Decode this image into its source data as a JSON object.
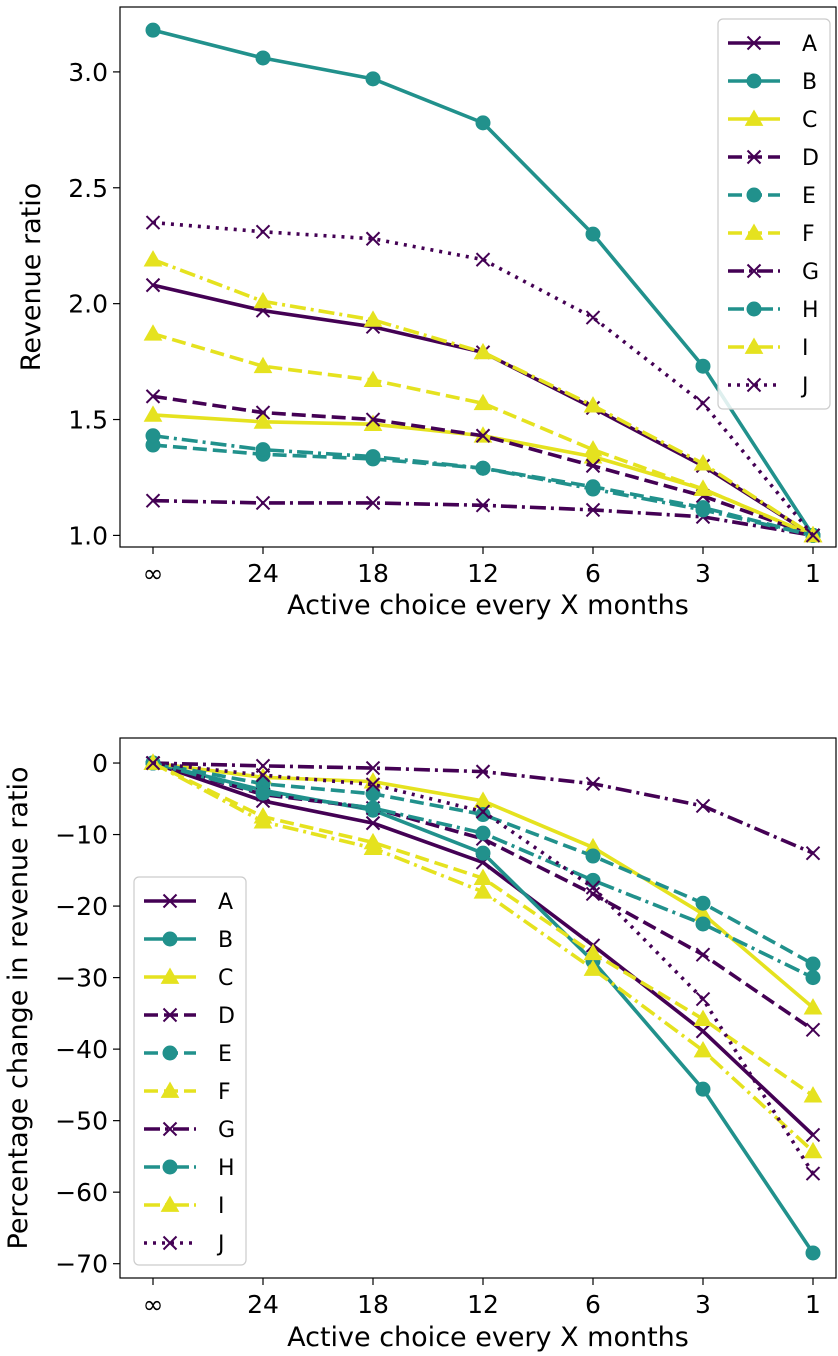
{
  "colors": {
    "purple": "#440154",
    "teal": "#21918c",
    "yellow": "#e5e21f"
  },
  "chart_data": [
    {
      "type": "line",
      "xlabel": "Active choice every X months",
      "ylabel": "Revenue ratio",
      "x_categories": [
        "∞",
        "24",
        "18",
        "12",
        "6",
        "3",
        "1"
      ],
      "ylim": [
        0.95,
        3.28
      ],
      "yticks": [
        1.0,
        1.5,
        2.0,
        2.5,
        3.0
      ],
      "ytick_labels": [
        "1.0",
        "1.5",
        "2.0",
        "2.5",
        "3.0"
      ],
      "legend_position": "upper right",
      "grid": false,
      "series": [
        {
          "name": "A",
          "color": "purple",
          "marker": "x",
          "dash": "solid",
          "values": [
            2.08,
            1.97,
            1.9,
            1.79,
            1.55,
            1.3,
            1.0
          ]
        },
        {
          "name": "B",
          "color": "teal",
          "marker": "circle",
          "dash": "solid",
          "values": [
            3.18,
            3.06,
            2.97,
            2.78,
            2.3,
            1.73,
            1.0
          ]
        },
        {
          "name": "C",
          "color": "yellow",
          "marker": "triangle",
          "dash": "solid",
          "values": [
            1.52,
            1.49,
            1.48,
            1.43,
            1.34,
            1.2,
            1.0
          ]
        },
        {
          "name": "D",
          "color": "purple",
          "marker": "x",
          "dash": "dashed",
          "values": [
            1.6,
            1.53,
            1.5,
            1.43,
            1.3,
            1.17,
            1.0
          ]
        },
        {
          "name": "E",
          "color": "teal",
          "marker": "circle",
          "dash": "dashed",
          "values": [
            1.39,
            1.35,
            1.33,
            1.29,
            1.21,
            1.12,
            1.0
          ]
        },
        {
          "name": "F",
          "color": "yellow",
          "marker": "triangle",
          "dash": "dashed",
          "values": [
            1.87,
            1.73,
            1.67,
            1.57,
            1.37,
            1.2,
            1.0
          ]
        },
        {
          "name": "G",
          "color": "purple",
          "marker": "x",
          "dash": "dashdot",
          "values": [
            1.15,
            1.14,
            1.14,
            1.13,
            1.11,
            1.08,
            1.0
          ]
        },
        {
          "name": "H",
          "color": "teal",
          "marker": "circle",
          "dash": "dashdot",
          "values": [
            1.43,
            1.37,
            1.34,
            1.29,
            1.2,
            1.11,
            1.0
          ]
        },
        {
          "name": "I",
          "color": "yellow",
          "marker": "triangle",
          "dash": "dashdot",
          "values": [
            2.19,
            2.01,
            1.93,
            1.79,
            1.56,
            1.31,
            1.0
          ]
        },
        {
          "name": "J",
          "color": "purple",
          "marker": "x",
          "dash": "dotted",
          "values": [
            2.35,
            2.31,
            2.28,
            2.19,
            1.94,
            1.57,
            1.0
          ]
        }
      ]
    },
    {
      "type": "line",
      "xlabel": "Active choice every X months",
      "ylabel": "Percentage change in revenue ratio",
      "x_categories": [
        "∞",
        "24",
        "18",
        "12",
        "6",
        "3",
        "1"
      ],
      "ylim": [
        -72,
        3.5
      ],
      "yticks": [
        0,
        -10,
        -20,
        -30,
        -40,
        -50,
        -60,
        -70
      ],
      "ytick_labels": [
        "0",
        "−10",
        "−20",
        "−30",
        "−40",
        "−50",
        "−60",
        "−70"
      ],
      "legend_position": "lower left",
      "grid": false,
      "series": [
        {
          "name": "A",
          "color": "purple",
          "marker": "x",
          "dash": "solid",
          "values": [
            0,
            -5.3,
            -8.4,
            -13.9,
            -25.5,
            -37.5,
            -52.0
          ]
        },
        {
          "name": "B",
          "color": "teal",
          "marker": "circle",
          "dash": "solid",
          "values": [
            0,
            -3.8,
            -6.6,
            -12.6,
            -27.7,
            -45.6,
            -68.5
          ]
        },
        {
          "name": "C",
          "color": "yellow",
          "marker": "triangle",
          "dash": "solid",
          "values": [
            0,
            -2.0,
            -2.6,
            -5.3,
            -11.8,
            -21.1,
            -34.2
          ]
        },
        {
          "name": "D",
          "color": "purple",
          "marker": "x",
          "dash": "dashed",
          "values": [
            0,
            -4.4,
            -6.3,
            -10.6,
            -18.3,
            -26.8,
            -37.3
          ]
        },
        {
          "name": "E",
          "color": "teal",
          "marker": "circle",
          "dash": "dashed",
          "values": [
            0,
            -2.9,
            -4.3,
            -7.2,
            -13.0,
            -19.6,
            -28.1
          ]
        },
        {
          "name": "F",
          "color": "yellow",
          "marker": "triangle",
          "dash": "dashed",
          "values": [
            0,
            -7.5,
            -11.1,
            -16.1,
            -26.6,
            -35.8,
            -46.5
          ]
        },
        {
          "name": "G",
          "color": "purple",
          "marker": "x",
          "dash": "dashdot",
          "values": [
            0,
            -0.4,
            -0.7,
            -1.2,
            -2.9,
            -6.0,
            -12.6
          ]
        },
        {
          "name": "H",
          "color": "teal",
          "marker": "circle",
          "dash": "dashdot",
          "values": [
            0,
            -4.2,
            -6.3,
            -9.8,
            -16.4,
            -22.5,
            -30.0
          ]
        },
        {
          "name": "I",
          "color": "yellow",
          "marker": "triangle",
          "dash": "dashdot",
          "values": [
            0,
            -8.2,
            -11.9,
            -18.0,
            -28.8,
            -40.2,
            -54.3
          ]
        },
        {
          "name": "J",
          "color": "purple",
          "marker": "x",
          "dash": "dotted",
          "values": [
            0,
            -1.7,
            -3.0,
            -6.8,
            -17.4,
            -33.0,
            -57.4
          ]
        }
      ]
    }
  ]
}
